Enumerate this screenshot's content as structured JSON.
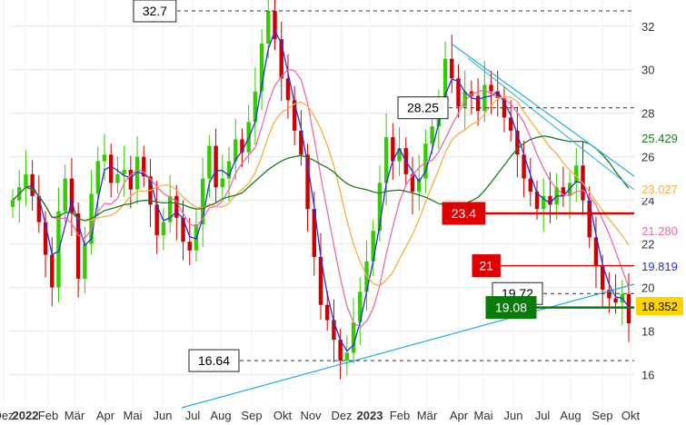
{
  "chart_data": {
    "type": "candlestick",
    "x_ticks": [
      "Dez",
      "2022",
      "Feb",
      "Mär",
      "Apr",
      "Mai",
      "Jun",
      "Jul",
      "Aug",
      "Sep",
      "Okt",
      "Nov",
      "Dez",
      "2023",
      "Feb",
      "Mär",
      "Apr",
      "Mai",
      "Jun",
      "Jul",
      "Aug",
      "Sep",
      "Okt"
    ],
    "y_ticks": [
      16,
      18,
      20,
      22,
      24,
      26,
      28,
      30,
      32
    ],
    "ylim": [
      14.6,
      33.2
    ],
    "grid": true,
    "ohlc_weekly_close": [
      24.0,
      24.6,
      25.2,
      24.2,
      23.0,
      21.5,
      20.0,
      23.5,
      25.0,
      23.4,
      20.4,
      22.0,
      24.3,
      25.8,
      26.1,
      24.8,
      25.2,
      25.4,
      24.5,
      26.0,
      25.1,
      23.8,
      22.4,
      23.0,
      24.2,
      23.2,
      22.1,
      21.7,
      22.9,
      25.0,
      26.5,
      24.6,
      25.0,
      25.8,
      26.8,
      26.2,
      27.6,
      29.0,
      31.2,
      32.7,
      31.4,
      29.6,
      28.6,
      27.2,
      26.1,
      23.6,
      21.4,
      19.2,
      18.5,
      17.6,
      16.64,
      17.0,
      18.4,
      19.8,
      21.2,
      22.6,
      24.8,
      26.9,
      25.8,
      26.4,
      25.2,
      24.4,
      25.0,
      26.6,
      27.4,
      28.6,
      30.5,
      29.6,
      28.3,
      29.0,
      28.8,
      28.1,
      29.3,
      29.0,
      28.7,
      27.8,
      27.2,
      26.1,
      25.0,
      24.4,
      23.6,
      24.2,
      23.8,
      24.6,
      24.2,
      24.8,
      25.6,
      24.0,
      22.3,
      21.0,
      19.9,
      19.5,
      19.3,
      19.7,
      18.352
    ],
    "moving_averages": [
      {
        "name": "MA-blau",
        "color": "#2a2fd8",
        "last": "19.819"
      },
      {
        "name": "MA-rosa",
        "color": "#ee6aa8",
        "last": "21.280"
      },
      {
        "name": "MA-orange",
        "color": "#f5b041",
        "last": "23.027"
      },
      {
        "name": "MA-grün",
        "color": "#1f7a1f",
        "last": "25.429"
      }
    ],
    "last_close": "18.352",
    "horizontal_levels": [
      {
        "label": "32.7",
        "value": 32.7,
        "style": "dashed",
        "color": "#333333"
      },
      {
        "label": "28.25",
        "value": 28.25,
        "style": "dashed",
        "color": "#333333"
      },
      {
        "label": "23.4",
        "value": 23.4,
        "style": "solid",
        "color": "#e00000"
      },
      {
        "label": "21",
        "value": 21.0,
        "style": "solid-thin",
        "color": "#e00000"
      },
      {
        "label": "19.72",
        "value": 19.72,
        "style": "dashed",
        "color": "#333333"
      },
      {
        "label": "19.08",
        "value": 19.08,
        "style": "solid",
        "color": "#0a7a0a"
      },
      {
        "label": "16.64",
        "value": 16.64,
        "style": "dashed",
        "color": "#333333"
      }
    ],
    "trendlines": [
      {
        "name": "Aufwärtstrend",
        "color": "#22aee0"
      },
      {
        "name": "Abwärtstrend",
        "color": "#22aee0"
      }
    ],
    "badge_colors": {
      "blue": "#2a2fd8",
      "pink": "#ee6aa8",
      "orange": "#f5b041",
      "green": "#1f7a1f",
      "last": "#ffd400"
    }
  }
}
